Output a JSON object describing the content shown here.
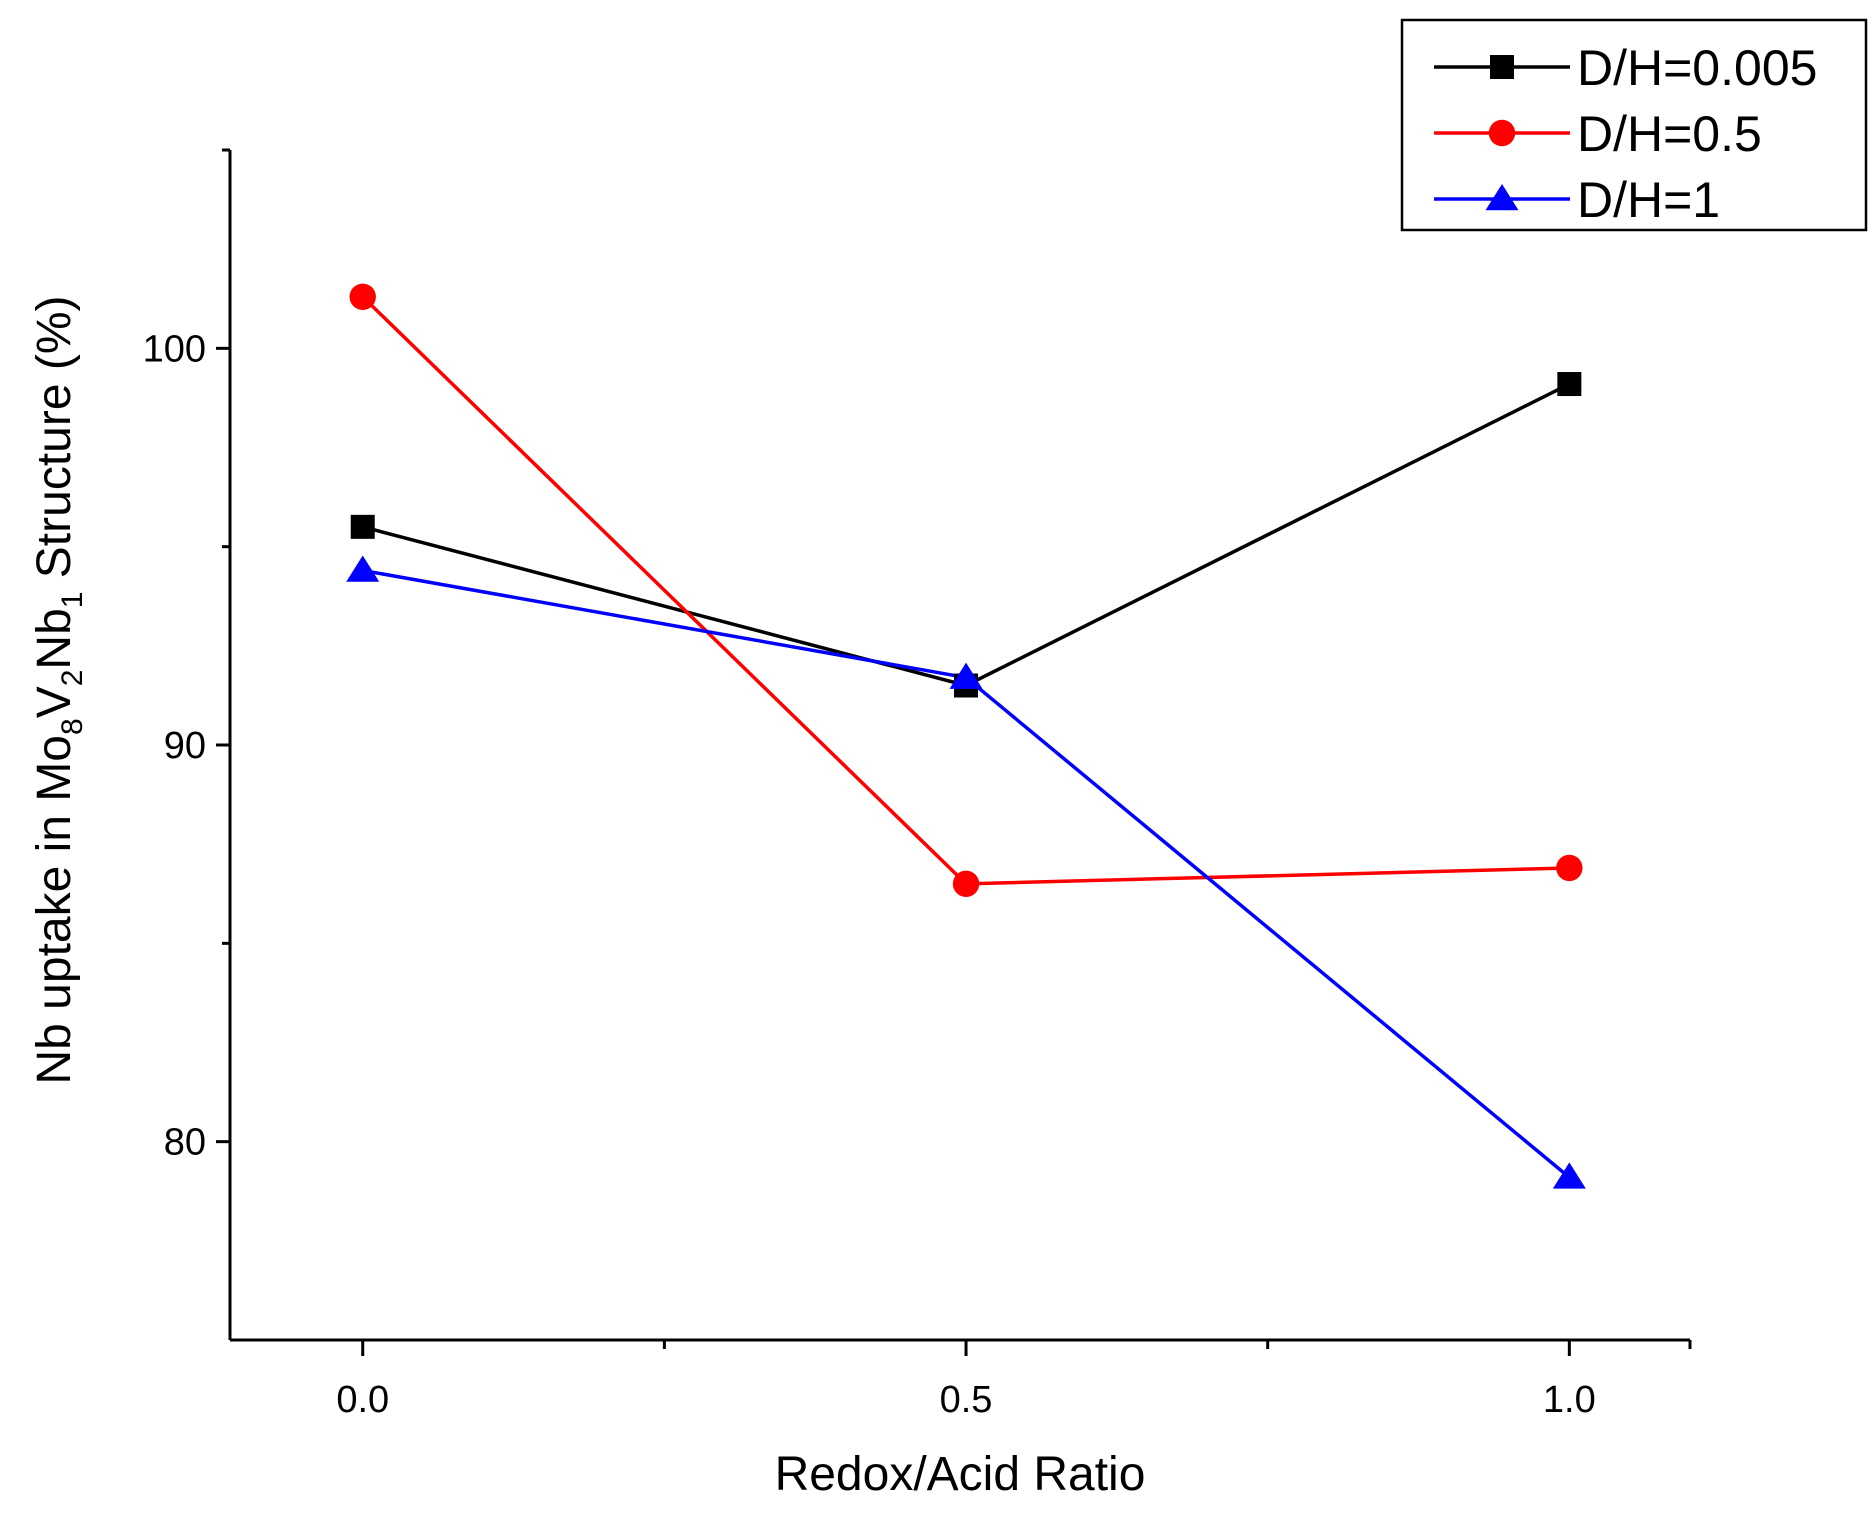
{
  "chart_data": {
    "type": "line",
    "title": "",
    "xlabel": "Redox/Acid Ratio",
    "ylabel": {
      "prefix": "Nb uptake in Mo",
      "sub1": "8",
      "mid1": "V",
      "sub2": "2",
      "mid2": "Nb",
      "sub3": "1",
      "suffix": " Structure (%)"
    },
    "x": [
      0.0,
      0.5,
      1.0
    ],
    "x_ticks": [
      0.0,
      0.5,
      1.0
    ],
    "x_tick_labels": [
      "0.0",
      "0.5",
      "1.0"
    ],
    "x_minor_ticks": [
      0.25,
      0.75
    ],
    "xlim": [
      -0.11,
      1.1
    ],
    "y_ticks": [
      80,
      90,
      100
    ],
    "y_tick_labels": [
      "80",
      "90",
      "100"
    ],
    "y_minor_ticks": [
      85,
      95
    ],
    "ylim": [
      75,
      105
    ],
    "grid": false,
    "legend_position": "top-right",
    "series": [
      {
        "name": "D/H=0.005",
        "color": "#000000",
        "marker": "square",
        "values": [
          95.5,
          91.5,
          99.1
        ]
      },
      {
        "name": "D/H=0.5",
        "color": "#ff0000",
        "marker": "circle",
        "values": [
          101.3,
          86.5,
          86.9
        ]
      },
      {
        "name": "D/H=1",
        "color": "#0000ff",
        "marker": "triangle",
        "values": [
          94.4,
          91.7,
          79.1
        ]
      }
    ]
  }
}
